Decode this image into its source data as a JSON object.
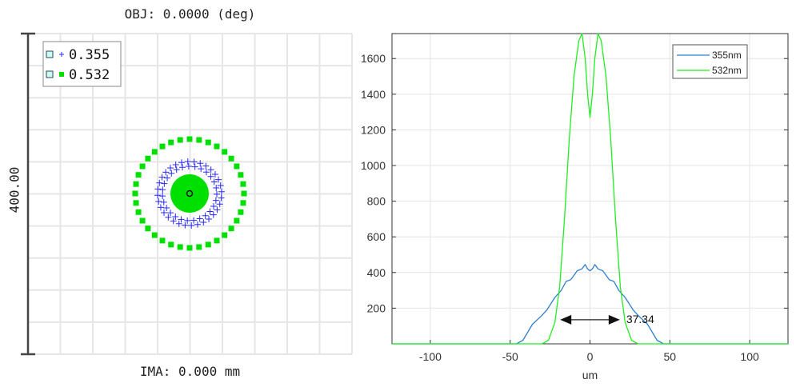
{
  "chart_data": [
    {
      "type": "scatter",
      "title": "OBJ: 0.0000 (deg)",
      "xlabel": "IMA: 0.000 mm",
      "scale_bar_label": "400.00",
      "grid": true,
      "legend_placement": "top-left",
      "series": [
        {
          "name": "0.355",
          "marker": "plus",
          "color": "#2a2aff",
          "ring_radius_um": 40
        },
        {
          "name": "0.532",
          "marker": "square",
          "color": "#00e000",
          "ring_radius_um": 68,
          "core_radius_um": 24
        }
      ]
    },
    {
      "type": "line",
      "xlabel": "um",
      "xlim": [
        -124,
        124
      ],
      "ylim": [
        0,
        1740
      ],
      "xticks": [
        -100,
        -50,
        0,
        50,
        100
      ],
      "yticks": [
        200,
        400,
        600,
        800,
        1000,
        1200,
        1400,
        1600
      ],
      "grid": true,
      "legend_placement": "top-right",
      "series": [
        {
          "name": "355nm",
          "color": "#2f7fd0",
          "x": [
            -124,
            -46,
            -42,
            -36,
            -30,
            -27,
            -22,
            -18,
            -15,
            -12,
            -8,
            -5,
            -3,
            -1.5,
            0,
            1.5,
            3,
            5,
            8,
            12,
            15,
            18,
            22,
            27,
            30,
            36,
            42,
            46,
            124
          ],
          "y": [
            0,
            0,
            20,
            110,
            160,
            190,
            260,
            300,
            350,
            360,
            410,
            420,
            445,
            420,
            410,
            420,
            445,
            420,
            410,
            360,
            350,
            300,
            260,
            190,
            160,
            110,
            20,
            0,
            0
          ]
        },
        {
          "name": "532nm",
          "color": "#22ee22",
          "x": [
            -124,
            -30,
            -26,
            -22,
            -19,
            -16,
            -13,
            -10,
            -7,
            -5,
            -3,
            -1.5,
            0,
            1.5,
            3,
            5,
            7,
            10,
            13,
            16,
            19,
            22,
            26,
            30,
            124
          ],
          "y": [
            0,
            0,
            20,
            120,
            320,
            700,
            1150,
            1500,
            1700,
            1740,
            1600,
            1400,
            1270,
            1400,
            1600,
            1740,
            1700,
            1500,
            1150,
            700,
            320,
            120,
            20,
            0,
            0
          ]
        }
      ],
      "annotations": [
        {
          "type": "double-arrow",
          "x_from": -18.7,
          "x_to": 18.7,
          "y": 135,
          "label": "37.34"
        }
      ]
    }
  ]
}
